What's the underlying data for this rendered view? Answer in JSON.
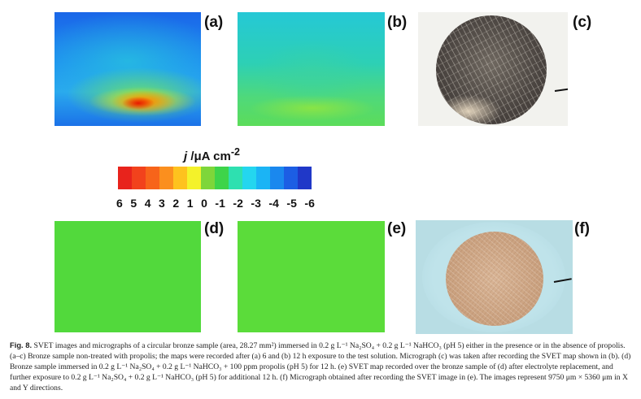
{
  "figure": {
    "panels": [
      {
        "id": "a",
        "label": "(a)",
        "kind": "SVET map"
      },
      {
        "id": "b",
        "label": "(b)",
        "kind": "SVET map"
      },
      {
        "id": "c",
        "label": "(c)",
        "kind": "micrograph"
      },
      {
        "id": "d",
        "label": "(d)",
        "kind": "SVET map"
      },
      {
        "id": "e",
        "label": "(e)",
        "kind": "SVET map"
      },
      {
        "id": "f",
        "label": "(f)",
        "kind": "micrograph"
      }
    ],
    "colorbar": {
      "title_var": "j",
      "title_unit": " /μA cm",
      "title_exp": "-2",
      "ticks": [
        "6",
        "5",
        "4",
        "3",
        "2",
        "1",
        "0",
        "-1",
        "-2",
        "-3",
        "-4",
        "-5",
        "-6"
      ],
      "colors": [
        "#e8231c",
        "#f2421c",
        "#f7641a",
        "#fb8f1e",
        "#fec21e",
        "#f4f22a",
        "#7ed63a",
        "#3ed44a",
        "#2ee0b0",
        "#24d6ef",
        "#1bb4f5",
        "#1a88ee",
        "#1c5ee4",
        "#2038c8"
      ]
    }
  },
  "caption": {
    "label": "Fig. 8.",
    "text": "SVET images and micrographs of a circular bronze sample (area, 28.27 mm²) immersed in 0.2 g L⁻¹ Na₂SO₄ + 0.2 g L⁻¹ NaHCO₃ (pH 5) either in the presence or in the absence of propolis. (a–c) Bronze sample non-treated with propolis; the maps were recorded after (a) 6 and (b) 12 h exposure to the test solution. Micrograph (c) was taken after recording the SVET map shown in (b). (d) Bronze sample immersed in 0.2 g L⁻¹ Na₂SO₄ + 0.2 g L⁻¹ NaHCO₃ + 100 ppm propolis (pH 5) for 12 h. (e) SVET map recorded over the bronze sample of (d) after electrolyte replacement, and further exposure to 0.2 g L⁻¹ Na₂SO₄ + 0.2 g L⁻¹ NaHCO₃ (pH 5) for additional 12 h. (f) Micrograph obtained after recording the SVET image in (e). The images represent 9750 μm × 5360 μm in X and Y directions."
  }
}
